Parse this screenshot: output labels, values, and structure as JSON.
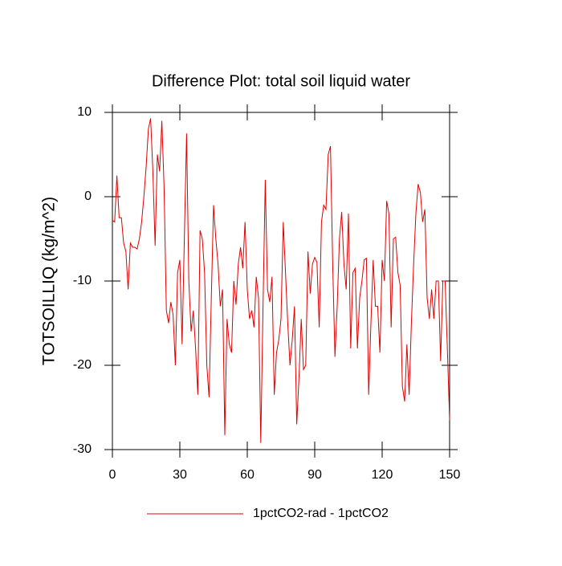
{
  "chart_data": {
    "type": "line",
    "title": "Difference Plot: total soil liquid water",
    "y_label": "TOTSOILLIQ  (kg/m^2)",
    "x": [
      0,
      1,
      2,
      3,
      4,
      5,
      6,
      7,
      8,
      9,
      10,
      11,
      12,
      13,
      14,
      15,
      16,
      17,
      18,
      19,
      20,
      21,
      22,
      23,
      24,
      25,
      26,
      27,
      28,
      29,
      30,
      31,
      32,
      33,
      34,
      35,
      36,
      37,
      38,
      39,
      40,
      41,
      42,
      43,
      44,
      45,
      46,
      47,
      48,
      49,
      50,
      51,
      52,
      53,
      54,
      55,
      56,
      57,
      58,
      59,
      60,
      61,
      62,
      63,
      64,
      65,
      66,
      67,
      68,
      69,
      70,
      71,
      72,
      73,
      74,
      75,
      76,
      77,
      78,
      79,
      80,
      81,
      82,
      83,
      84,
      85,
      86,
      87,
      88,
      89,
      90,
      91,
      92,
      93,
      94,
      95,
      96,
      97,
      98,
      99,
      100,
      101,
      102,
      103,
      104,
      105,
      106,
      107,
      108,
      109,
      110,
      111,
      112,
      113,
      114,
      115,
      116,
      117,
      118,
      119,
      120,
      121,
      122,
      123,
      124,
      125,
      126,
      127,
      128,
      129,
      130,
      131,
      132,
      133,
      134,
      135,
      136,
      137,
      138,
      139,
      140,
      141,
      142,
      143,
      144,
      145,
      146,
      147,
      148,
      149,
      150
    ],
    "series": [
      {
        "name": "1pctCO2-rad - 1pctCO2",
        "color": "#e00000",
        "values": [
          -2.8,
          -3,
          2.5,
          -2.5,
          -2.5,
          -5.5,
          -6.5,
          -11,
          -5.5,
          -6,
          -6,
          -6.2,
          -5,
          -3,
          0,
          3.5,
          8,
          9.3,
          3,
          -5.8,
          5,
          3,
          9,
          1,
          -13.5,
          -15,
          -12.5,
          -14,
          -20,
          -9,
          -7.5,
          -17.5,
          -5,
          7.5,
          -10,
          -16,
          -13.5,
          -18,
          -23.5,
          -4,
          -5,
          -9,
          -20,
          -23.8,
          -12,
          -1,
          -5,
          -8,
          -13,
          -11,
          -28.3,
          -14.5,
          -17.5,
          -18.5,
          -10,
          -12.8,
          -8,
          -6,
          -8.5,
          -3,
          -11,
          -14.5,
          -13.5,
          -15.5,
          -9.5,
          -12,
          -29.2,
          -13,
          2,
          -11,
          -12.5,
          -9.5,
          -23.5,
          -18.5,
          -17,
          -14.5,
          -3,
          -9,
          -15,
          -20,
          -17,
          -13,
          -27,
          -21.5,
          -14.5,
          -20.5,
          -20,
          -6.5,
          -11.5,
          -8,
          -7.2,
          -7.8,
          -15.5,
          -3,
          -1,
          -1.5,
          5,
          6,
          -8,
          -19,
          -13,
          -5,
          -1.8,
          -8,
          -11,
          -2,
          -18,
          -9,
          -8.5,
          -18,
          -12,
          -10,
          -7.5,
          -7.3,
          -23.5,
          -15,
          -7.5,
          -13,
          -13,
          -18.5,
          -7.5,
          -10,
          -0.5,
          -2,
          -15.5,
          -5,
          -4.8,
          -9,
          -10.5,
          -22.5,
          -24.3,
          -17.5,
          -23.5,
          -15,
          -8,
          -2,
          1.5,
          0.5,
          -3,
          -1.5,
          -12,
          -14.5,
          -11,
          -14.5,
          -10,
          -10,
          -19.5,
          -10,
          -10,
          -18,
          -26.5
        ]
      }
    ],
    "xlim": [
      0,
      150
    ],
    "xticks": [
      0,
      30,
      60,
      90,
      120,
      150
    ],
    "ylim": [
      -30,
      10
    ],
    "yticks": [
      -30,
      -20,
      -10,
      0,
      10
    ]
  }
}
